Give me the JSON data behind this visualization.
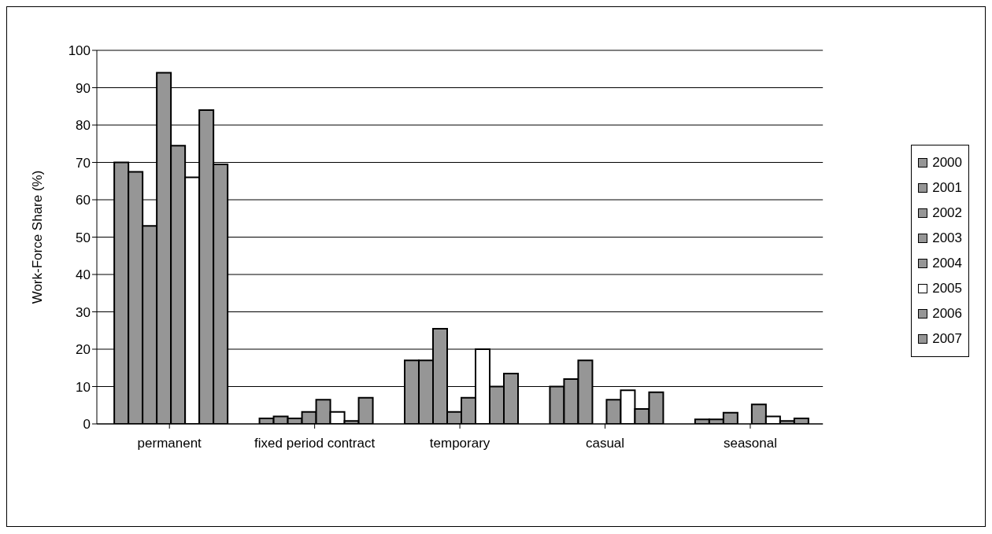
{
  "chart_data": {
    "type": "bar",
    "ylabel": "Work-Force Share (%)",
    "categories": [
      "permanent",
      "fixed period contract",
      "temporary",
      "casual",
      "seasonal"
    ],
    "series": [
      {
        "name": "2000",
        "color": "#969696",
        "values": [
          70,
          1.5,
          17,
          10,
          1.2
        ]
      },
      {
        "name": "2001",
        "color": "#969696",
        "values": [
          67.5,
          2,
          17,
          12,
          1.2
        ]
      },
      {
        "name": "2002",
        "color": "#969696",
        "values": [
          53,
          1.5,
          25.5,
          17,
          3
        ]
      },
      {
        "name": "2003",
        "color": "#969696",
        "values": [
          94,
          3.2,
          3.2,
          null,
          null
        ]
      },
      {
        "name": "2004",
        "color": "#969696",
        "values": [
          74.5,
          6.5,
          7,
          6.5,
          5.2
        ]
      },
      {
        "name": "2005",
        "color": "#ffffff",
        "values": [
          66,
          3.2,
          20,
          9,
          2
        ]
      },
      {
        "name": "2006",
        "color": "#969696",
        "values": [
          84,
          0.8,
          10,
          4,
          0.8
        ]
      },
      {
        "name": "2007",
        "color": "#969696",
        "values": [
          69.5,
          7,
          13.5,
          8.5,
          1.5
        ]
      }
    ],
    "ylim": [
      0,
      100
    ],
    "yticks": [
      0,
      10,
      20,
      30,
      40,
      50,
      60,
      70,
      80,
      90,
      100
    ],
    "grid": "y",
    "legend": "right"
  }
}
